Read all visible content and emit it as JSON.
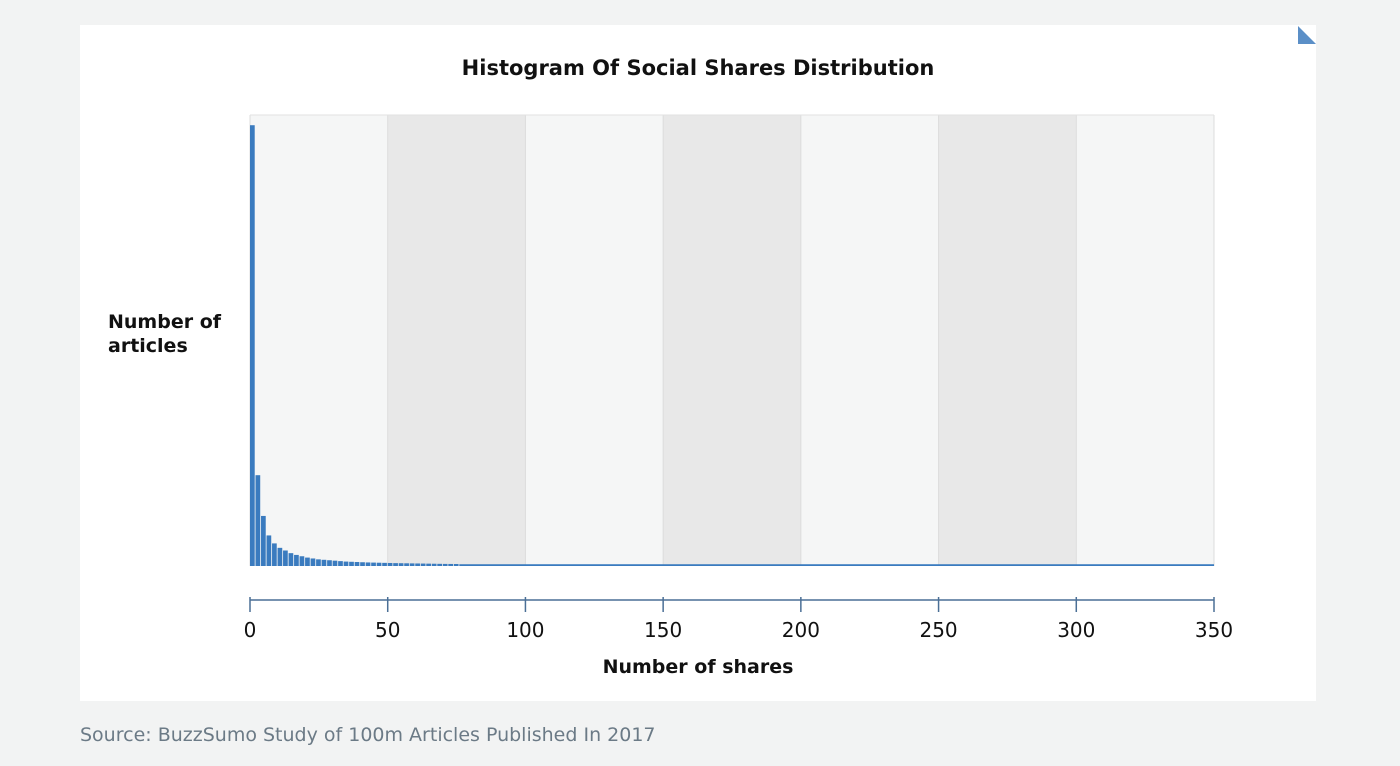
{
  "chart_data": {
    "type": "bar",
    "title": "Histogram Of Social Shares Distribution",
    "xlabel": "Number of shares",
    "ylabel": "Number of articles",
    "xlim": [
      0,
      350
    ],
    "x_ticks": [
      "0",
      "50",
      "100",
      "150",
      "200",
      "250",
      "300",
      "350"
    ],
    "y_ticks": [],
    "ylim": [
      0,
      1.0
    ],
    "bin_width": 2,
    "bins_start": [
      0,
      2,
      4,
      6,
      8,
      10,
      12,
      14,
      16,
      18,
      20,
      22,
      24,
      26,
      28,
      30,
      32,
      34,
      36,
      38,
      40,
      42,
      44,
      46,
      48,
      50,
      52,
      54,
      56,
      58,
      60,
      62,
      64,
      66,
      68,
      70,
      72,
      74
    ],
    "values": [
      0.995,
      0.205,
      0.113,
      0.069,
      0.051,
      0.041,
      0.035,
      0.029,
      0.025,
      0.022,
      0.019,
      0.017,
      0.015,
      0.014,
      0.013,
      0.012,
      0.011,
      0.01,
      0.0095,
      0.009,
      0.0085,
      0.008,
      0.0077,
      0.0074,
      0.0071,
      0.0068,
      0.0065,
      0.0063,
      0.0061,
      0.0059,
      0.0057,
      0.0055,
      0.0053,
      0.0051,
      0.0049,
      0.0047,
      0.0046,
      0.0045
    ],
    "tail_value": 0.004,
    "series_color": "#3a7bbf",
    "grid": "alternating vertical bands",
    "band_colors": [
      "#f5f6f6",
      "#e8e8e8"
    ],
    "legend": "none"
  },
  "source_text": "Source: BuzzSumo Study of 100m Articles Published In 2017",
  "colors": {
    "page_background": "#f2f3f3",
    "card_background": "#ffffff",
    "bars": "#3a7bbf",
    "axis": "#4a6f96",
    "source_text": "#6b7a86",
    "corner_fold": "#5b8fc7"
  }
}
